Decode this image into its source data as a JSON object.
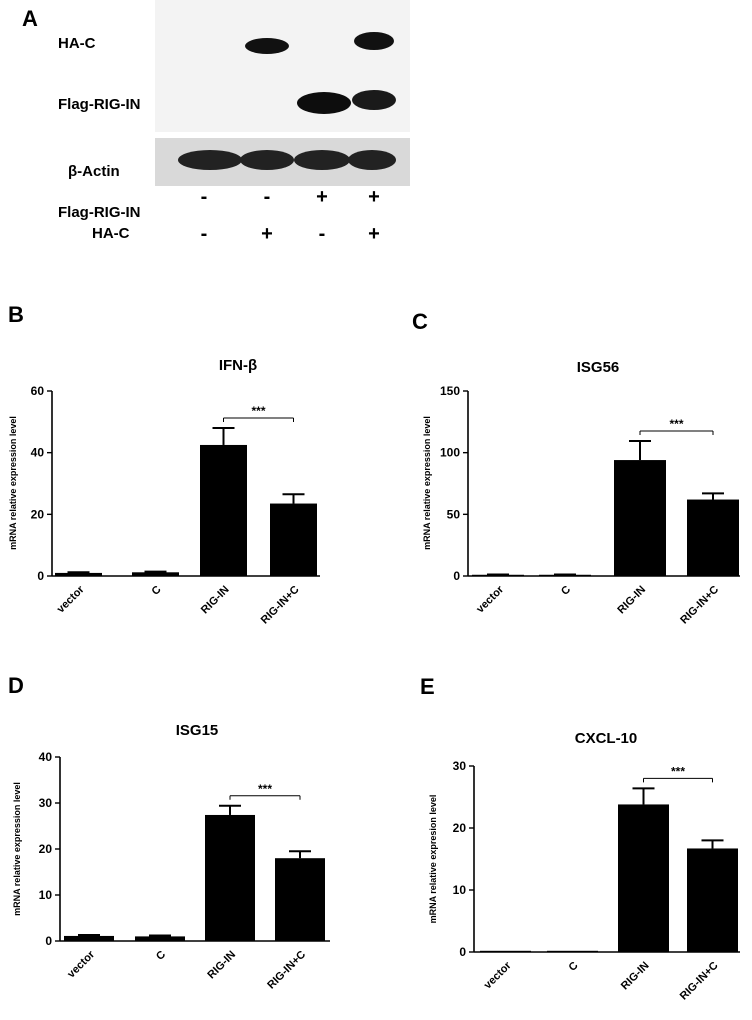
{
  "blot": {
    "panel": "A",
    "rows": [
      {
        "label": "HA-C",
        "band_presence": [
          false,
          true,
          false,
          true
        ]
      },
      {
        "label": "Flag-RIG-IN",
        "band_presence": [
          false,
          false,
          true,
          true
        ]
      },
      {
        "label": "β-Actin",
        "band_presence": [
          true,
          true,
          true,
          true
        ]
      }
    ],
    "conditions": [
      {
        "label": "Flag-RIG-IN",
        "signs": [
          "-",
          "-",
          "+",
          "+"
        ]
      },
      {
        "label": "HA-C",
        "signs": [
          "-",
          "+",
          "-",
          "+"
        ]
      }
    ]
  },
  "chart_data": [
    {
      "panel": "B",
      "type": "bar",
      "title": "IFN-β",
      "ylabel": "mRNA relative expression level",
      "categories": [
        "vector",
        "C",
        "RIG-IN",
        "RIG-IN+C"
      ],
      "values": [
        1,
        1.2,
        42.5,
        23.5
      ],
      "errors": [
        0.2,
        0.2,
        5.5,
        3
      ],
      "ylim": [
        0,
        60
      ],
      "yticks": [
        "0",
        "20",
        "40",
        "60"
      ],
      "ytick_values": [
        0,
        20,
        40,
        60
      ],
      "significance": {
        "from": 2,
        "to": 3,
        "label": "***"
      },
      "color": "#000000"
    },
    {
      "panel": "C",
      "type": "bar",
      "title": "ISG56",
      "ylabel": "mRNA relative expression level",
      "categories": [
        "vector",
        "C",
        "RIG-IN",
        "RIG-IN+C"
      ],
      "values": [
        1,
        1,
        94,
        62
      ],
      "errors": [
        0.2,
        0.2,
        15.5,
        5
      ],
      "ylim": [
        0,
        150
      ],
      "yticks": [
        "0",
        "50",
        "100",
        "150"
      ],
      "ytick_values": [
        0,
        50,
        100,
        150
      ],
      "significance": {
        "from": 2,
        "to": 3,
        "label": "***"
      },
      "color": "#000000"
    },
    {
      "panel": "D",
      "type": "bar",
      "title": "ISG15",
      "ylabel": "mRNA relative expression level",
      "categories": [
        "vector",
        "C",
        "RIG-IN",
        "RIG-IN+C"
      ],
      "values": [
        1.1,
        1,
        27.4,
        18
      ],
      "errors": [
        0.2,
        0.2,
        2,
        1.5
      ],
      "ylim": [
        0,
        40
      ],
      "yticks": [
        "0",
        "10",
        "20",
        "30",
        "40"
      ],
      "ytick_values": [
        0,
        10,
        20,
        30,
        40
      ],
      "significance": {
        "from": 2,
        "to": 3,
        "label": "***"
      },
      "color": "#000000"
    },
    {
      "panel": "E",
      "type": "bar",
      "title": "CXCL-10",
      "ylabel": "mRNA relative expresion level",
      "categories": [
        "vector",
        "C",
        "RIG-IN",
        "RIG-IN+C"
      ],
      "values": [
        0.1,
        0.1,
        23.8,
        16.7
      ],
      "errors": [
        0,
        0,
        2.6,
        1.3
      ],
      "ylim": [
        0,
        30
      ],
      "yticks": [
        "0",
        "10",
        "20",
        "30"
      ],
      "ytick_values": [
        0,
        10,
        20,
        30
      ],
      "significance": {
        "from": 2,
        "to": 3,
        "label": "***"
      },
      "color": "#000000"
    }
  ]
}
